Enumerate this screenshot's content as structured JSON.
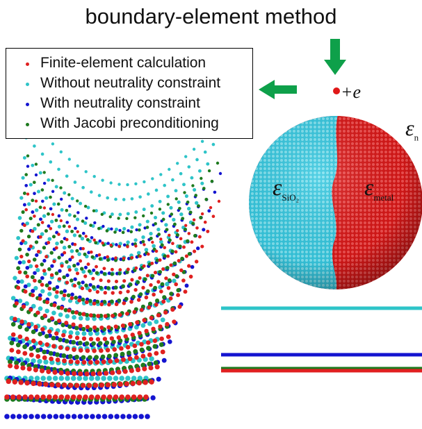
{
  "title": "boundary-element method",
  "legend": {
    "items": [
      {
        "label": "Finite-element calculation",
        "color": "#e02020"
      },
      {
        "label": "Without neutrality constraint",
        "color": "#2ec4c8"
      },
      {
        "label": "With neutrality constraint",
        "color": "#1414d0"
      },
      {
        "label": "With Jacobi preconditioning",
        "color": "#1e7a1e"
      }
    ]
  },
  "charge": {
    "symbol": "+e",
    "color": "#e01818"
  },
  "arrow_color": "#0ea04a",
  "permittivity": {
    "medium": {
      "symbol": "ε",
      "subscript": "n"
    },
    "sio2": {
      "symbol": "ε",
      "subscript": "SiO₂"
    },
    "metal": {
      "symbol": "ε",
      "subscript": "metal"
    }
  },
  "sphere": {
    "sio2_color": "#36c8e0",
    "metal_color": "#e01c1c"
  }
}
